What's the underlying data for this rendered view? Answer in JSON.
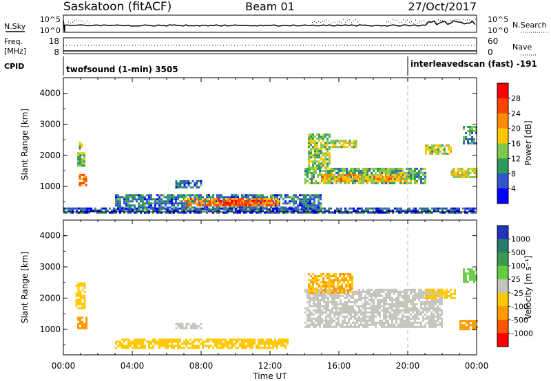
{
  "header": {
    "station": "Saskatoon (fitACF)",
    "beam": "Beam 01",
    "date": "27/Oct/2017"
  },
  "strips": {
    "nsky": {
      "label": "N.Sky",
      "ticks": [
        "10^5",
        "10^0"
      ],
      "right_label": "N.Search",
      "right_ticks": [
        "10^5",
        "10^0"
      ]
    },
    "freq": {
      "label_line1": "Freq.",
      "label_line2": "[MHz]",
      "ticks": [
        "18",
        "8"
      ],
      "right_label": "Nave",
      "right_ticks": [
        "60",
        "0"
      ]
    },
    "cpid": {
      "label": "CPID",
      "segments": [
        {
          "text": "twofsound (1-min) 3505",
          "start_hour": 0
        },
        {
          "text": "interleavedscan (fast) -191",
          "start_hour": 20
        }
      ]
    }
  },
  "chart_data": [
    {
      "type": "heatmap",
      "quantity": "Power",
      "colorbar_label": "Power [dB]",
      "ylabel": "Slant Range [km]",
      "ylim": [
        180,
        4500
      ],
      "yticks": [
        1000,
        2000,
        3000,
        4000
      ],
      "xlim_hours": [
        0,
        24
      ],
      "colorbar": {
        "ticks": [
          "28",
          "24",
          "20",
          "16",
          "12",
          "8",
          "4"
        ],
        "colors": [
          "#ff0000",
          "#ff4400",
          "#ff8c00",
          "#ffc800",
          "#7ec850",
          "#2e9a5a",
          "#3355cc",
          "#0000ff"
        ]
      },
      "regions": [
        {
          "x": [
            0.9,
            1.3
          ],
          "r": [
            1050,
            1400
          ],
          "v": 22
        },
        {
          "x": [
            0.8,
            1.2
          ],
          "r": [
            1700,
            2100
          ],
          "v": 14
        },
        {
          "x": [
            0.9,
            1.1
          ],
          "r": [
            2250,
            2450
          ],
          "v": 16
        },
        {
          "x": [
            3,
            15
          ],
          "r": [
            240,
            750
          ],
          "v": 8
        },
        {
          "x": [
            7,
            12.5
          ],
          "r": [
            380,
            620
          ],
          "v": 22
        },
        {
          "x": [
            9,
            12
          ],
          "r": [
            420,
            560
          ],
          "v": 26
        },
        {
          "x": [
            6.5,
            8
          ],
          "r": [
            950,
            1200
          ],
          "v": 8
        },
        {
          "x": [
            14,
            21
          ],
          "r": [
            1100,
            1600
          ],
          "v": 12
        },
        {
          "x": [
            15,
            20
          ],
          "r": [
            1150,
            1400
          ],
          "v": 20
        },
        {
          "x": [
            14.2,
            15.5
          ],
          "r": [
            1600,
            2700
          ],
          "v": 14
        },
        {
          "x": [
            15.5,
            17
          ],
          "r": [
            2250,
            2500
          ],
          "v": 16
        },
        {
          "x": [
            21,
            22.5
          ],
          "r": [
            2050,
            2350
          ],
          "v": 16
        },
        {
          "x": [
            22.5,
            24
          ],
          "r": [
            1300,
            1600
          ],
          "v": 18
        },
        {
          "x": [
            23.2,
            24
          ],
          "r": [
            2400,
            2950
          ],
          "v": 10
        },
        {
          "x": [
            0,
            24
          ],
          "r": [
            180,
            320
          ],
          "v": 6
        }
      ]
    },
    {
      "type": "heatmap",
      "quantity": "Velocity",
      "colorbar_label": "Velocity [m s⁻¹]",
      "ylabel": "Slant Range [km]",
      "ylim": [
        180,
        4500
      ],
      "yticks": [
        1000,
        2000,
        3000,
        4000
      ],
      "xlim_hours": [
        0,
        24
      ],
      "colorbar": {
        "ticks": [
          "1000",
          "500",
          "100",
          "25",
          "-25",
          "-100",
          "-500",
          "-1000"
        ],
        "colors": [
          "#2233bb",
          "#2a7a6a",
          "#3c9a50",
          "#66cc44",
          "#c4c4bc",
          "#ffc800",
          "#ff9a00",
          "#ff5500",
          "#ff0000"
        ]
      },
      "regions": [
        {
          "x": [
            0.8,
            1.3
          ],
          "r": [
            1050,
            1400
          ],
          "v": -200
        },
        {
          "x": [
            0.7,
            1.2
          ],
          "r": [
            1700,
            2500
          ],
          "v": -60
        },
        {
          "x": [
            3,
            13
          ],
          "r": [
            380,
            700
          ],
          "v": -60
        },
        {
          "x": [
            6.5,
            8
          ],
          "r": [
            1050,
            1200
          ],
          "v": 0
        },
        {
          "x": [
            14,
            22
          ],
          "r": [
            1100,
            2300
          ],
          "v": 0
        },
        {
          "x": [
            14.2,
            16.8
          ],
          "r": [
            2200,
            2800
          ],
          "v": -100
        },
        {
          "x": [
            21,
            22.8
          ],
          "r": [
            2000,
            2300
          ],
          "v": -60
        },
        {
          "x": [
            23,
            24
          ],
          "r": [
            1000,
            1300
          ],
          "v": -200
        },
        {
          "x": [
            23.2,
            24
          ],
          "r": [
            2500,
            2950
          ],
          "v": 60
        }
      ]
    }
  ],
  "xaxis": {
    "label": "Time UT",
    "ticks": [
      "00:00",
      "04:00",
      "08:00",
      "12:00",
      "16:00",
      "20:00",
      "00:00"
    ]
  }
}
